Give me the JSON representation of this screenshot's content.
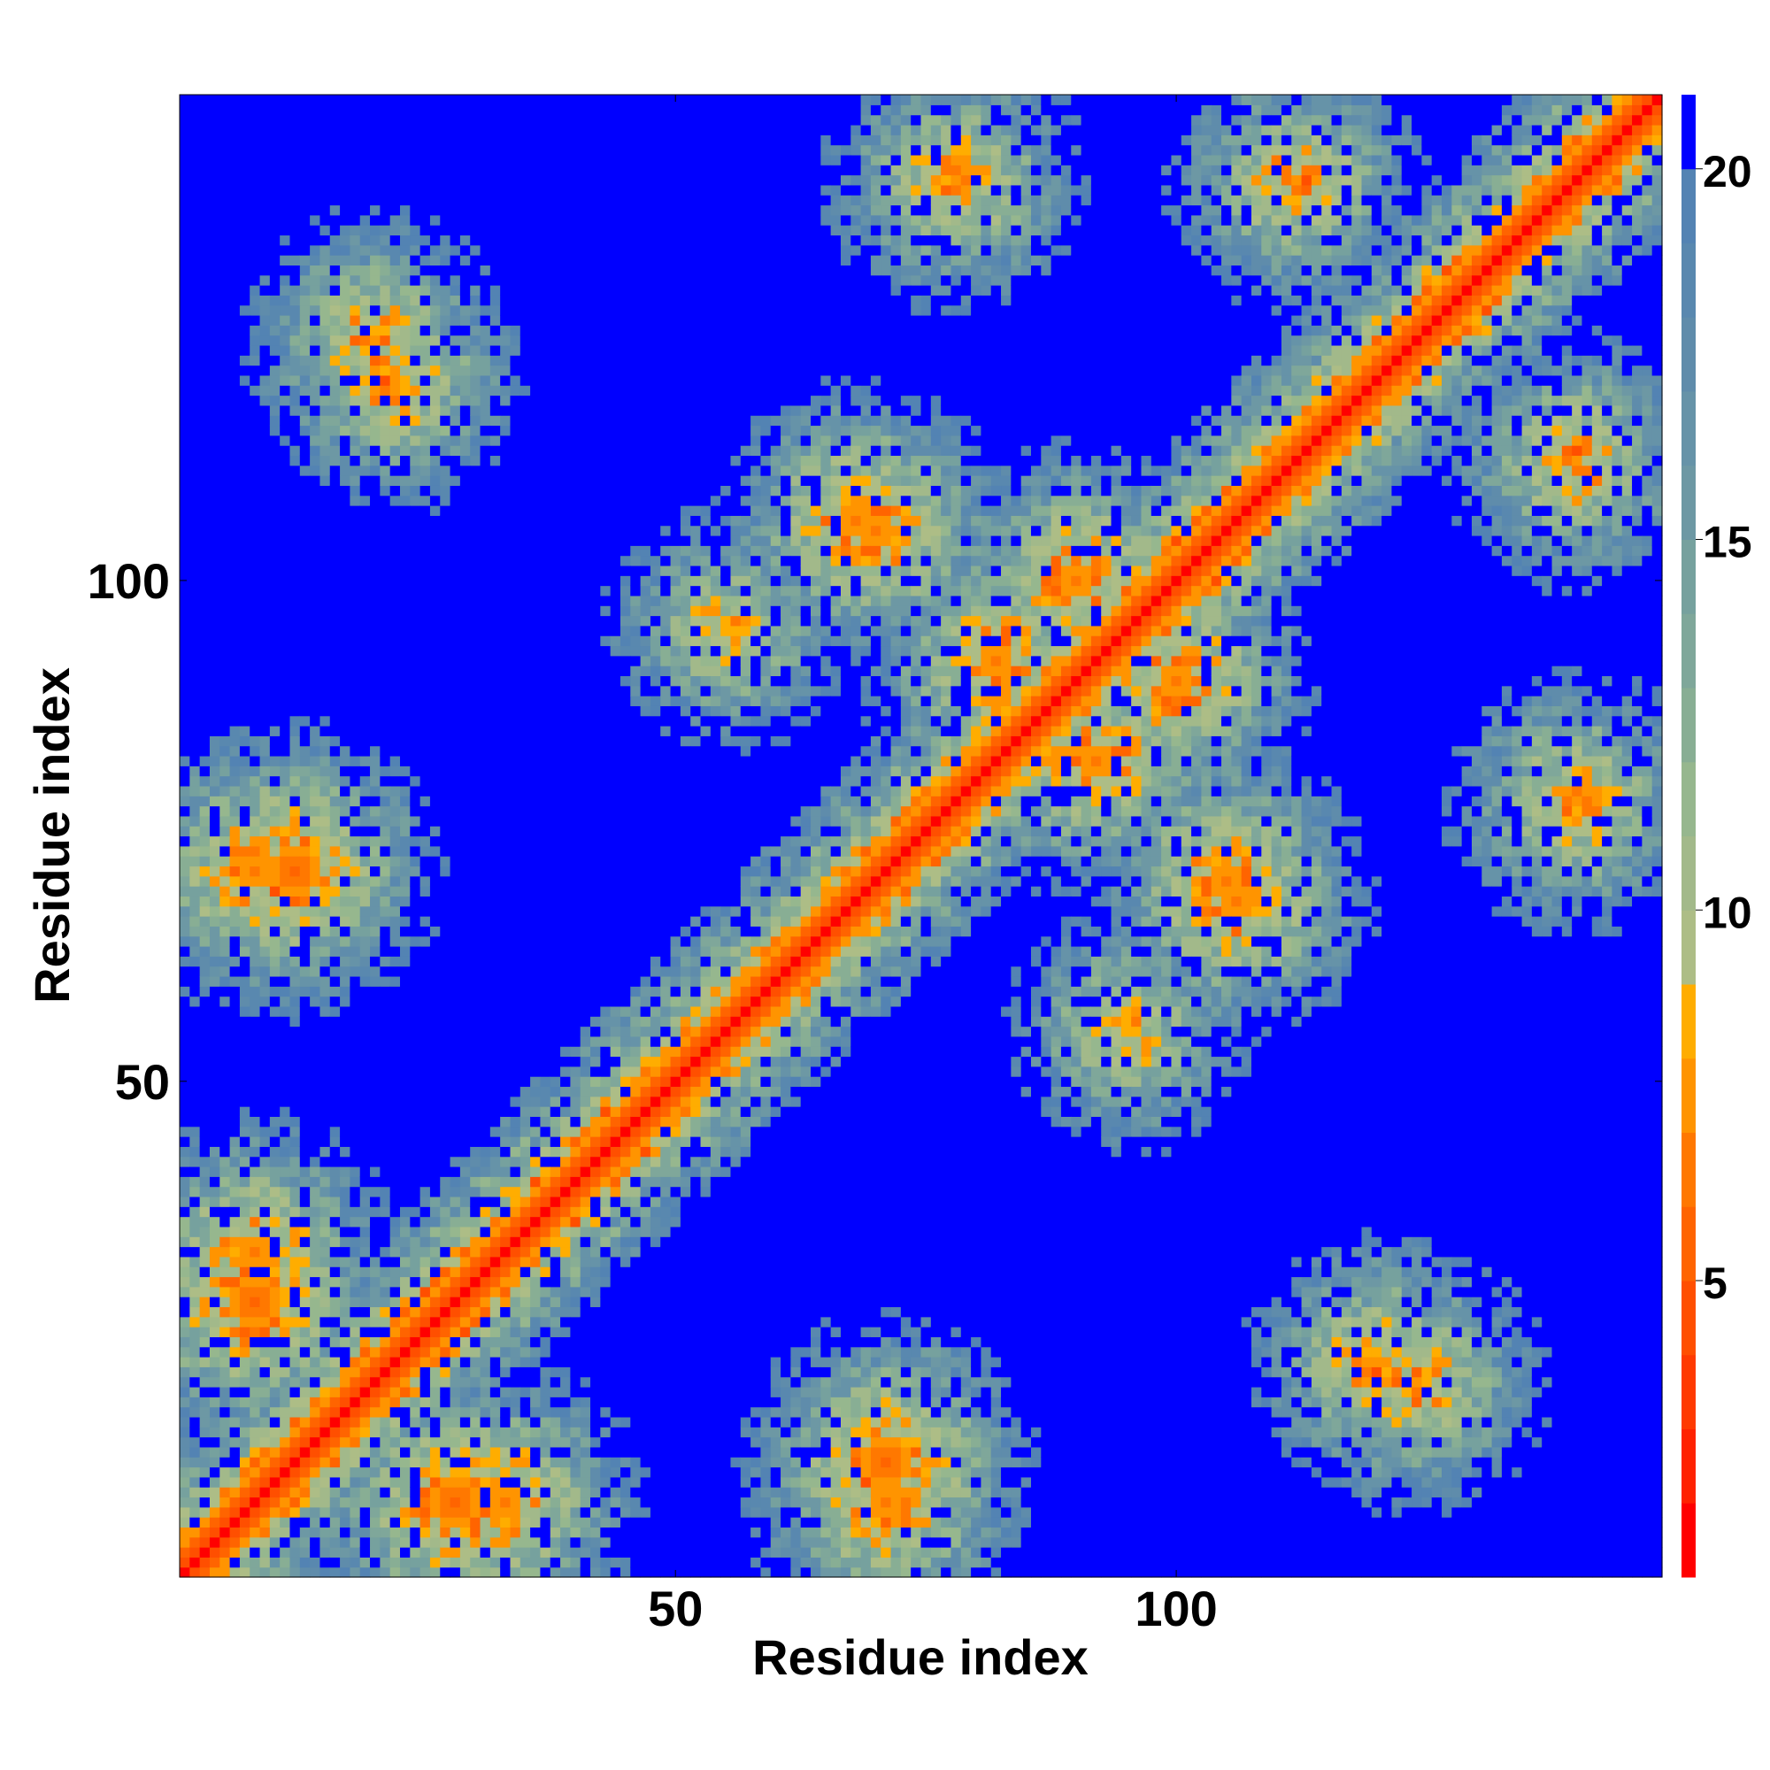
{
  "chart_data": {
    "type": "heatmap",
    "title": "",
    "xlabel": "Residue index",
    "ylabel": "Residue index",
    "n_residues": 148,
    "xlim": [
      1,
      148
    ],
    "ylim": [
      1,
      148
    ],
    "x_ticks": [
      50,
      100
    ],
    "y_ticks": [
      50,
      100
    ],
    "colorbar": {
      "range": [
        1,
        21
      ],
      "ticks": [
        5,
        10,
        15,
        20
      ],
      "bands": [
        {
          "from": 1,
          "to": 2,
          "color": "#ff0000"
        },
        {
          "from": 2,
          "to": 3,
          "color": "#ff2200"
        },
        {
          "from": 3,
          "to": 4,
          "color": "#ff3a00"
        },
        {
          "from": 4,
          "to": 5,
          "color": "#ff4f00"
        },
        {
          "from": 5,
          "to": 6,
          "color": "#ff6400"
        },
        {
          "from": 6,
          "to": 7,
          "color": "#ff7800"
        },
        {
          "from": 7,
          "to": 8,
          "color": "#ff9400"
        },
        {
          "from": 8,
          "to": 9,
          "color": "#ffad00"
        },
        {
          "from": 9,
          "to": 10,
          "color": "#adbd86"
        },
        {
          "from": 10,
          "to": 11,
          "color": "#a2b98a"
        },
        {
          "from": 11,
          "to": 12,
          "color": "#96b78e"
        },
        {
          "from": 12,
          "to": 13,
          "color": "#88ae94"
        },
        {
          "from": 13,
          "to": 14,
          "color": "#7fa79a"
        },
        {
          "from": 14,
          "to": 15,
          "color": "#76a19e"
        },
        {
          "from": 15,
          "to": 16,
          "color": "#6d98a4"
        },
        {
          "from": 16,
          "to": 17,
          "color": "#6693a8"
        },
        {
          "from": 17,
          "to": 18,
          "color": "#5f8cab"
        },
        {
          "from": 18,
          "to": 19,
          "color": "#5988af"
        },
        {
          "from": 19,
          "to": 20,
          "color": "#5383b3"
        },
        {
          "from": 20,
          "to": 21,
          "color": "#0000ff"
        }
      ]
    },
    "value_description_of_regions": [
      {
        "region": "main diagonal",
        "value_range": [
          1,
          6
        ]
      },
      {
        "region": "background (no contact)",
        "value": 21
      }
    ],
    "contact_clusters": [
      {
        "center": [
          12,
          71
        ],
        "strength": 5
      },
      {
        "center": [
          71,
          12
        ],
        "strength": 5
      },
      {
        "center": [
          8,
          28
        ],
        "strength": 5
      },
      {
        "center": [
          28,
          8
        ],
        "strength": 5
      },
      {
        "center": [
          33,
          8
        ],
        "strength": 6
      },
      {
        "center": [
          8,
          33
        ],
        "strength": 6
      },
      {
        "center": [
          71,
          8
        ],
        "strength": 6
      },
      {
        "center": [
          8,
          71
        ],
        "strength": 6
      },
      {
        "center": [
          105,
          70
        ],
        "strength": 6
      },
      {
        "center": [
          70,
          105
        ],
        "strength": 6
      },
      {
        "center": [
          90,
          100
        ],
        "strength": 6
      },
      {
        "center": [
          100,
          90
        ],
        "strength": 6
      },
      {
        "center": [
          68,
          106
        ],
        "strength": 6
      },
      {
        "center": [
          106,
          68
        ],
        "strength": 6
      },
      {
        "center": [
          92,
          82
        ],
        "strength": 6
      },
      {
        "center": [
          82,
          92
        ],
        "strength": 6
      },
      {
        "center": [
          20,
          124
        ],
        "strength": 7
      },
      {
        "center": [
          124,
          20
        ],
        "strength": 7
      },
      {
        "center": [
          78,
          140
        ],
        "strength": 7
      },
      {
        "center": [
          140,
          78
        ],
        "strength": 7
      },
      {
        "center": [
          140,
          112
        ],
        "strength": 7
      },
      {
        "center": [
          112,
          140
        ],
        "strength": 7
      },
      {
        "center": [
          120,
          22
        ],
        "strength": 7
      },
      {
        "center": [
          22,
          120
        ],
        "strength": 7
      },
      {
        "center": [
          55,
          95
        ],
        "strength": 8
      },
      {
        "center": [
          95,
          55
        ],
        "strength": 8
      }
    ]
  }
}
